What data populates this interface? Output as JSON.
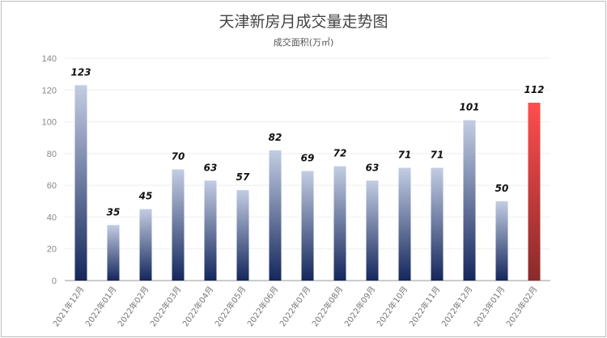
{
  "chart_data": {
    "type": "bar",
    "title": "天津新房月成交量走势图",
    "subtitle": "成交面积(万㎡)",
    "categories": [
      "2021年12月",
      "2022年01月",
      "2022年02月",
      "2022年03月",
      "2022年04月",
      "2022年05月",
      "2022年06月",
      "2022年07月",
      "2022年08月",
      "2022年09月",
      "2022年10月",
      "2022年11月",
      "2022年12月",
      "2023年01月",
      "2023年02月"
    ],
    "values": [
      123,
      35,
      45,
      70,
      63,
      57,
      82,
      69,
      72,
      63,
      71,
      71,
      101,
      50,
      112
    ],
    "value_labels": [
      "123",
      "35",
      "45",
      "70",
      "63",
      "57",
      "82",
      "69",
      "72",
      "63",
      "71",
      "71",
      "101",
      "50",
      "112"
    ],
    "highlight_index": 14,
    "ylim": [
      0,
      140
    ],
    "yticks": [
      0,
      20,
      40,
      60,
      80,
      100,
      120,
      140
    ],
    "ytick_labels": [
      "0",
      "20",
      "40",
      "60",
      "80",
      "100",
      "120",
      "140"
    ],
    "grid": true,
    "colors": {
      "bar_top": "#c3cde3",
      "bar_bottom": "#14275c",
      "highlight_top": "#ff4d4d",
      "highlight_bottom": "#8b2a2a",
      "grid": "#eeeeee",
      "axis": "#999999"
    }
  }
}
